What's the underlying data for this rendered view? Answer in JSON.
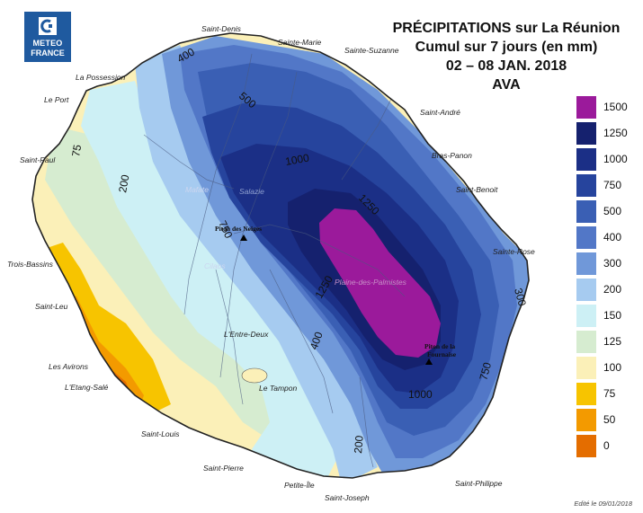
{
  "logo": {
    "line1": "METEO",
    "line2": "FRANCE",
    "color": "#1f5a9f"
  },
  "title": {
    "line1": "PRÉCIPITATIONS sur La Réunion",
    "line2": "Cumul sur 7 jours (en mm)",
    "line3": "02 – 08 JAN. 2018",
    "line4": "AVA"
  },
  "legend": {
    "levels": [
      {
        "label": "1500",
        "color": "#9b1a9b"
      },
      {
        "label": "1250",
        "color": "#15216e"
      },
      {
        "label": "1000",
        "color": "#1b2f86"
      },
      {
        "label": "750",
        "color": "#26449d"
      },
      {
        "label": "500",
        "color": "#3a5fb4"
      },
      {
        "label": "400",
        "color": "#5277c7"
      },
      {
        "label": "300",
        "color": "#7098d9"
      },
      {
        "label": "200",
        "color": "#a6cbf0"
      },
      {
        "label": "150",
        "color": "#cdf0f5"
      },
      {
        "label": "125",
        "color": "#d6ecd0"
      },
      {
        "label": "100",
        "color": "#fbf0b8"
      },
      {
        "label": "75",
        "color": "#f7c400"
      },
      {
        "label": "50",
        "color": "#f39a00"
      },
      {
        "label": "0",
        "color": "#e46d00"
      }
    ]
  },
  "places": {
    "saint_denis": "Saint-Denis",
    "sainte_marie": "Sainte-Marie",
    "sainte_suzanne": "Sainte-Suzanne",
    "la_possession": "La Possession",
    "le_port": "Le Port",
    "saint_andre": "Saint-André",
    "bras_panon": "Bras-Panon",
    "saint_benoit": "Saint-Benoit",
    "saint_paul": "Saint-Paul",
    "sainte_rose": "Sainte-Rose",
    "trois_bassins": "Trois-Bassins",
    "saint_leu": "Saint-Leu",
    "les_avirons": "Les Avirons",
    "etang_sale": "L'Etang-Salé",
    "saint_louis": "Saint-Louis",
    "saint_pierre": "Saint-Pierre",
    "petite_ile": "Petite-Île",
    "saint_joseph": "Saint-Joseph",
    "saint_philippe": "Saint-Philippe",
    "le_tampon": "Le Tampon",
    "entre_deux": "L'Entre-Deux",
    "cilaos": "Cilaos",
    "mafate": "Mafate",
    "salazie": "Salazie",
    "plaine_palmistes": "Plaine-des-Palmistes"
  },
  "peaks": {
    "neiges": "Piton des Neiges",
    "fournaise_1": "Piton de la",
    "fournaise_2": "Fournaise"
  },
  "contours": {
    "c400": "400",
    "c500": "500",
    "c1000": "1000",
    "c1250": "1250",
    "c200": "200",
    "c75": "75",
    "c750": "750",
    "c1250b": "1250",
    "c400b": "400",
    "c1000b": "1000",
    "c750b": "750",
    "c300": "300",
    "c200b": "200"
  },
  "footer": "Edité le 09/01/2018"
}
